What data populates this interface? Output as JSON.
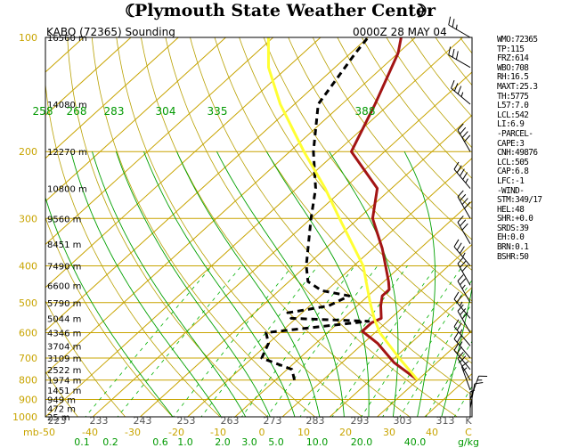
{
  "banner": {
    "title": "Plymouth State Weather Center"
  },
  "chart_data": {
    "type": "line",
    "title": "KABO (72365) Sounding",
    "valid_time": "0000Z 28 MAY 04",
    "yaxis": {
      "pressure_ticks": [
        100,
        200,
        300,
        400,
        500,
        600,
        700,
        800,
        900,
        1000
      ],
      "pressure_labels": [
        "100",
        "200",
        "300",
        "400",
        "500",
        "600",
        "700",
        "800",
        "900",
        "1000"
      ],
      "ylim": [
        1000,
        100
      ],
      "scale": "log"
    },
    "xaxis": {
      "unit": "mb",
      "temperature_labels": [
        "-50",
        "-40",
        "-30",
        "-20",
        "-10",
        "0",
        "10",
        "20",
        "30",
        "40",
        "C"
      ],
      "kelvin_labels": [
        "223",
        "233",
        "243",
        "253",
        "263",
        "273",
        "283",
        "293",
        "303",
        "313",
        "K"
      ],
      "mixing_ratio_labels": [
        "0.1",
        "0.2",
        "0.6",
        "1.0",
        "2.0",
        "3.0",
        "5.0",
        "10.0",
        "20.0",
        "40.0",
        "g/kg"
      ],
      "theta_labels": [
        "258",
        "268",
        "283",
        "304",
        "335",
        "388"
      ]
    },
    "height_labels": [
      {
        "p": 100,
        "label": "16560 m"
      },
      {
        "p": 150,
        "label": "14080 m"
      },
      {
        "p": 200,
        "label": "12270 m"
      },
      {
        "p": 250,
        "label": "10800 m"
      },
      {
        "p": 300,
        "label": "9560 m"
      },
      {
        "p": 350,
        "label": "8451 m"
      },
      {
        "p": 400,
        "label": "7490 m"
      },
      {
        "p": 450,
        "label": "6600 m"
      },
      {
        "p": 500,
        "label": "5790 m"
      },
      {
        "p": 550,
        "label": "5044 m"
      },
      {
        "p": 600,
        "label": "4346 m"
      },
      {
        "p": 650,
        "label": "3704 m"
      },
      {
        "p": 700,
        "label": "3109 m"
      },
      {
        "p": 750,
        "label": "2522 m"
      },
      {
        "p": 800,
        "label": "1974 m"
      },
      {
        "p": 850,
        "label": "1451 m"
      },
      {
        "p": 900,
        "label": "949 m"
      },
      {
        "p": 950,
        "label": "472 m"
      },
      {
        "p": 1000,
        "label": "25 m"
      }
    ],
    "series": [
      {
        "name": "",
        "role": "temperature",
        "color": "#a31414",
        "points": [
          [
            800,
            20
          ],
          [
            720,
            11
          ],
          [
            640,
            3
          ],
          [
            595,
            -3
          ],
          [
            565,
            -3
          ],
          [
            550,
            -2
          ],
          [
            510,
            -5
          ],
          [
            480,
            -7
          ],
          [
            462,
            -7
          ],
          [
            440,
            -9
          ],
          [
            360,
            -18
          ],
          [
            300,
            -27
          ],
          [
            250,
            -33
          ],
          [
            200,
            -47
          ],
          [
            150,
            -53
          ],
          [
            110,
            -60
          ],
          [
            100,
            -63
          ]
        ]
      },
      {
        "name": "",
        "role": "dewpoint",
        "color": "#000000",
        "dashed": true,
        "points": [
          [
            800,
            -6
          ],
          [
            750,
            -9
          ],
          [
            700,
            -18
          ],
          [
            640,
            -20
          ],
          [
            600,
            -23
          ],
          [
            560,
            -4
          ],
          [
            550,
            -21
          ],
          [
            532,
            -23
          ],
          [
            510,
            -16
          ],
          [
            480,
            -14
          ],
          [
            465,
            -21
          ],
          [
            440,
            -26
          ],
          [
            400,
            -30
          ],
          [
            300,
            -40
          ],
          [
            250,
            -46
          ],
          [
            200,
            -55
          ],
          [
            150,
            -65
          ],
          [
            110,
            -69
          ],
          [
            100,
            -70
          ]
        ]
      },
      {
        "name": "",
        "role": "parcel",
        "color": "#ffff33",
        "points": [
          [
            800,
            20
          ],
          [
            700,
            11
          ],
          [
            600,
            1
          ],
          [
            550,
            -3.5
          ],
          [
            500,
            -8
          ],
          [
            400,
            -18
          ],
          [
            300,
            -34
          ],
          [
            250,
            -44
          ],
          [
            200,
            -57
          ],
          [
            150,
            -73
          ],
          [
            120,
            -84
          ],
          [
            100,
            -91
          ]
        ]
      }
    ],
    "wind_barbs": [
      {
        "p": 1000,
        "dir": 360,
        "kt": 5
      },
      {
        "p": 950,
        "dir": 10,
        "kt": 10
      },
      {
        "p": 900,
        "dir": 20,
        "kt": 15
      },
      {
        "p": 850,
        "dir": 340,
        "kt": 15
      },
      {
        "p": 800,
        "dir": 330,
        "kt": 20
      },
      {
        "p": 750,
        "dir": 320,
        "kt": 20
      },
      {
        "p": 700,
        "dir": 320,
        "kt": 25
      },
      {
        "p": 650,
        "dir": 320,
        "kt": 25
      },
      {
        "p": 600,
        "dir": 330,
        "kt": 30
      },
      {
        "p": 550,
        "dir": 320,
        "kt": 25
      },
      {
        "p": 500,
        "dir": 330,
        "kt": 25
      },
      {
        "p": 450,
        "dir": 330,
        "kt": 30
      },
      {
        "p": 400,
        "dir": 320,
        "kt": 35
      },
      {
        "p": 350,
        "dir": 330,
        "kt": 30
      },
      {
        "p": 300,
        "dir": 330,
        "kt": 40
      },
      {
        "p": 250,
        "dir": 320,
        "kt": 45
      },
      {
        "p": 200,
        "dir": 330,
        "kt": 40
      },
      {
        "p": 150,
        "dir": 310,
        "kt": 35
      },
      {
        "p": 120,
        "dir": 300,
        "kt": 30
      },
      {
        "p": 100,
        "dir": 300,
        "kt": 25
      }
    ],
    "legend": "none",
    "grid": true
  },
  "indices": [
    "WMO:72365",
    "TP:115",
    "FRZ:614",
    "WBO:708",
    "RH:16.5",
    "MAXT:25.3",
    "TH:5775",
    "L57:7.0",
    "LCL:542",
    "LI:6.9",
    "-PARCEL-",
    "CAPE:3",
    "CNH:49876",
    "LCL:505",
    "CAP:6.8",
    "LFC:-1",
    "-WIND-",
    "STM:349/17",
    "HEL:48",
    "SHR:+0.0",
    "SRDS:39",
    "EH:0.0",
    "BRN:0.1",
    "BSHR:50"
  ],
  "colors": {
    "isobar": "#c8a400",
    "isotherm": "#c8a400",
    "dry_adiabat": "#b8a000",
    "moist_adiabat": "#00a000",
    "mixing_ratio": "#00b000",
    "label_yellow": "#c8a400",
    "label_green": "#009900"
  }
}
